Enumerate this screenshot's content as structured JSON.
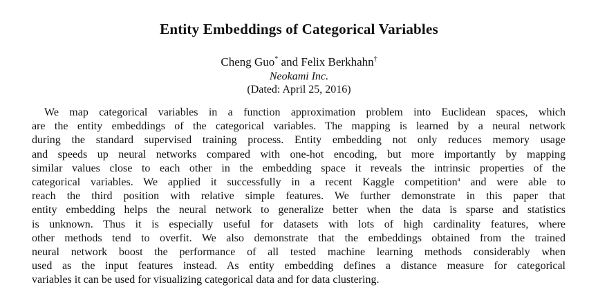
{
  "paper": {
    "title": "Entity Embeddings of Categorical Variables",
    "authors": {
      "author1": "Cheng Guo",
      "author1_mark": "*",
      "connector": "and",
      "author2": "Felix Berkhahn",
      "author2_mark": "†"
    },
    "affiliation": "Neokami Inc.",
    "dated": "(Dated: April 25, 2016)"
  },
  "abstract": {
    "lines": [
      "We map categorical variables in a function approximation problem into Euclidean spaces, which",
      "are the entity embeddings of the categorical variables. The mapping is learned by a neural network",
      "during the standard supervised training process. Entity embedding not only reduces memory usage",
      "and speeds up neural networks compared with one-hot encoding, but more importantly by mapping",
      "similar values close to each other in the embedding space it reveals the intrinsic properties of the",
      "categorical variables. We applied it successfully in a recent Kaggle competition",
      "reach the third position with relative simple features. We further demonstrate in this paper that",
      "entity embedding helps the neural network to generalize better when the data is sparse and statistics",
      "is unknown. Thus it is especially useful for datasets with lots of high cardinality features, where",
      "other methods tend to overfit. We also demonstrate that the embeddings obtained from the trained",
      "neural network boost the performance of all tested machine learning methods considerably when",
      "used as the input features instead. As entity embedding defines a distance measure for categorical",
      "variables it can be used for visualizing categorical data and for data clustering."
    ],
    "line6_footnote_mark": "a",
    "line6_tail": " and were able to"
  }
}
